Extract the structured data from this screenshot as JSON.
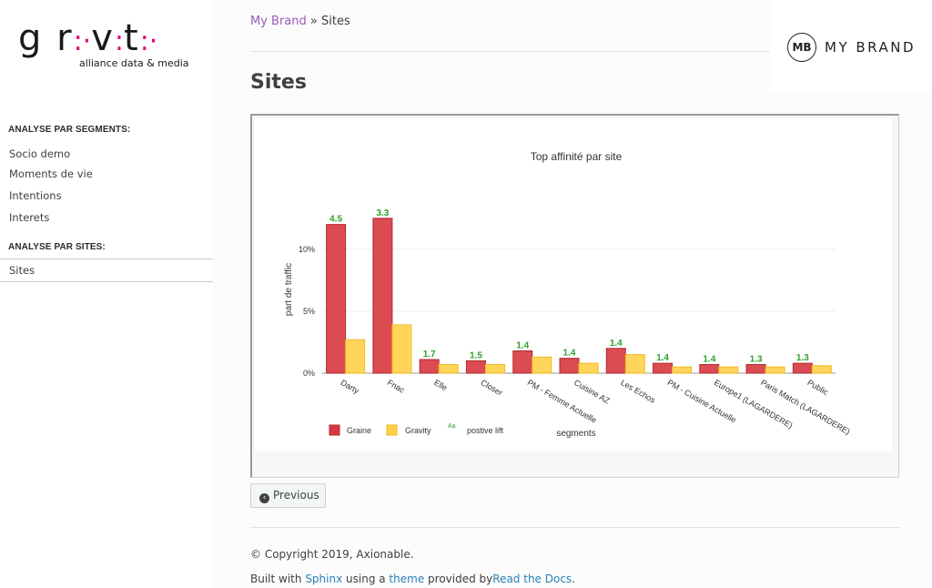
{
  "logo": {
    "word_g": "g",
    "word_mid": "r",
    "dots1": ":·",
    "word_v": "v",
    "dots2": ":",
    "word_t": "t",
    "dots3": ":·",
    "tagline": "alliance data & media"
  },
  "sidebar": {
    "caption_segments": "ANALYSE PAR SEGMENTS:",
    "items_segments": [
      "Socio demo",
      "Moments de vie",
      "Intentions",
      "Interets"
    ],
    "caption_sites": "ANALYSE PAR SITES:",
    "current": "Sites"
  },
  "breadcrumb": {
    "home": "My Brand",
    "sep": "»",
    "current": "Sites"
  },
  "page_title": "Sites",
  "brand": {
    "mark": "MB",
    "text": "MY BRAND"
  },
  "colors": {
    "graine": "#d8373f",
    "gravity": "#ffd04a",
    "lift": "#2ca02c",
    "link": "#2980b9",
    "breadcrumb": "#9b59b6"
  },
  "chart_data": {
    "type": "bar",
    "title": "Top affinité par site",
    "xlabel": "segments",
    "ylabel": "part de traffic",
    "yticks": [
      "0%",
      "5%",
      "10%"
    ],
    "ylim": [
      0,
      13
    ],
    "categories": [
      "Darty",
      "Fnac",
      "Elle",
      "Closer",
      "PM - Femme Actuelle",
      "Cuisine AZ",
      "Les Echos",
      "PM - Cuisine Actuelle",
      "Europe1 (LAGARDERE)",
      "Paris Match (LAGARDERE)",
      "Public"
    ],
    "series": [
      {
        "name": "Graine",
        "values": [
          12.0,
          12.5,
          1.1,
          1.0,
          1.8,
          1.2,
          2.0,
          0.8,
          0.7,
          0.7,
          0.8
        ]
      },
      {
        "name": "Gravity",
        "values": [
          2.7,
          3.9,
          0.7,
          0.7,
          1.3,
          0.8,
          1.5,
          0.5,
          0.5,
          0.5,
          0.6
        ]
      }
    ],
    "lift_labels": [
      "4.5",
      "3.3",
      "1.7",
      "1.5",
      "1.4",
      "1.4",
      "1.4",
      "1.4",
      "1.4",
      "1.3",
      "1.3"
    ],
    "legend": {
      "placement": "bottom-left",
      "lift_glyph": "Aa",
      "lift_name": "postive lift"
    },
    "grid": true
  },
  "pagination": {
    "previous": "Previous",
    "previous_icon": "arrow-left-circle-icon"
  },
  "footer": {
    "copyright": "© Copyright 2019, Axionable.",
    "built_prefix": "Built with",
    "sphinx": "Sphinx",
    "using": "using a",
    "theme": "theme",
    "provided": "provided by",
    "rtd": "Read the Docs",
    "period": "."
  }
}
